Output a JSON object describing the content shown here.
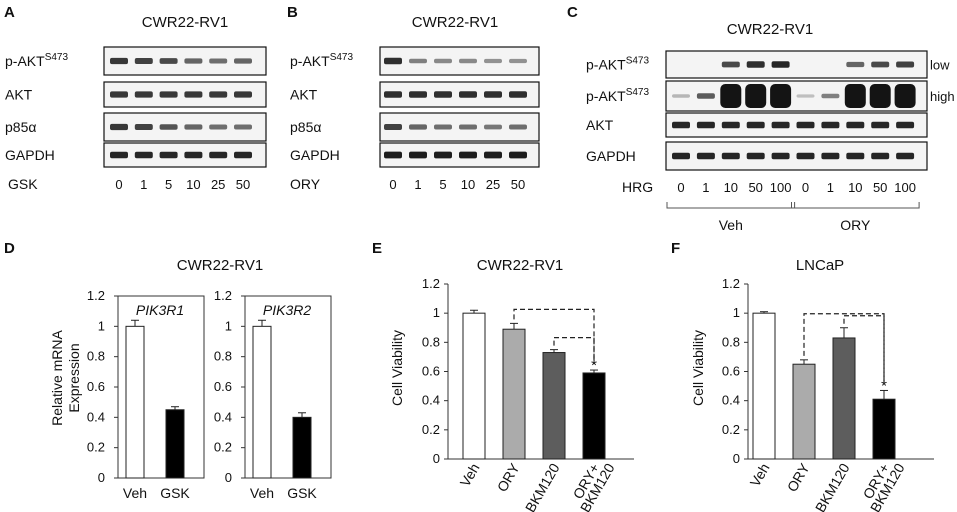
{
  "blots": [
    {
      "letter": "A",
      "cell_line": "CWR22-RV1",
      "rows": [
        {
          "label": "p-AKT",
          "sup": "S473",
          "side": ""
        },
        {
          "label": "AKT",
          "sup": "",
          "side": ""
        },
        {
          "label": "p85α",
          "sup": "",
          "side": ""
        },
        {
          "label": "GAPDH",
          "sup": "",
          "side": ""
        }
      ],
      "treatment": "GSK",
      "doses": [
        "0",
        "1",
        "5",
        "10",
        "25",
        "50"
      ],
      "intensity": [
        [
          0.8,
          0.75,
          0.7,
          0.55,
          0.5,
          0.55
        ],
        [
          0.8,
          0.8,
          0.8,
          0.8,
          0.8,
          0.8
        ],
        [
          0.8,
          0.75,
          0.65,
          0.55,
          0.5,
          0.5
        ],
        [
          0.9,
          0.9,
          0.9,
          0.9,
          0.9,
          0.9
        ]
      ]
    },
    {
      "letter": "B",
      "cell_line": "CWR22-RV1",
      "rows": [
        {
          "label": "p-AKT",
          "sup": "S473",
          "side": ""
        },
        {
          "label": "AKT",
          "sup": "",
          "side": ""
        },
        {
          "label": "p85α",
          "sup": "",
          "side": ""
        },
        {
          "label": "GAPDH",
          "sup": "",
          "side": ""
        }
      ],
      "treatment": "ORY",
      "doses": [
        "0",
        "1",
        "5",
        "10",
        "25",
        "50"
      ],
      "intensity": [
        [
          0.85,
          0.4,
          0.35,
          0.35,
          0.3,
          0.3
        ],
        [
          0.85,
          0.85,
          0.85,
          0.85,
          0.85,
          0.85
        ],
        [
          0.75,
          0.55,
          0.5,
          0.5,
          0.45,
          0.5
        ],
        [
          0.95,
          0.95,
          0.95,
          0.95,
          0.95,
          0.95
        ]
      ]
    },
    {
      "letter": "C",
      "cell_line": "CWR22-RV1",
      "rows": [
        {
          "label": "p-AKT",
          "sup": "S473",
          "side": "low"
        },
        {
          "label": "p-AKT",
          "sup": "S473",
          "side": "high"
        },
        {
          "label": "AKT",
          "sup": "",
          "side": ""
        },
        {
          "label": "GAPDH",
          "sup": "",
          "side": ""
        }
      ],
      "treatment": "HRG",
      "doses": [
        "0",
        "1",
        "10",
        "50",
        "100",
        "0",
        "1",
        "10",
        "50",
        "100"
      ],
      "groups": [
        {
          "name": "Veh",
          "from": 0,
          "to": 4
        },
        {
          "name": "ORY",
          "from": 5,
          "to": 9
        }
      ],
      "intensity": [
        [
          0,
          0,
          0.7,
          0.85,
          0.9,
          0,
          0,
          0.55,
          0.7,
          0.75
        ],
        [
          0.1,
          0.6,
          1,
          1,
          1,
          0.05,
          0.4,
          1,
          1,
          1
        ],
        [
          0.9,
          0.9,
          0.9,
          0.9,
          0.9,
          0.9,
          0.9,
          0.9,
          0.9,
          0.9
        ],
        [
          0.9,
          0.9,
          0.9,
          0.9,
          0.9,
          0.9,
          0.9,
          0.9,
          0.9,
          0.9
        ]
      ]
    }
  ],
  "bar_panels": [
    {
      "letter": "D",
      "title": "CWR22-RV1",
      "ylabel": [
        "Relative mRNA",
        "Expression"
      ]
    },
    {
      "letter": "E",
      "title": "CWR22-RV1",
      "ylabel": [
        "Cell Viability"
      ]
    },
    {
      "letter": "F",
      "title": "LNCaP",
      "ylabel": [
        "Cell Viability"
      ]
    }
  ],
  "chart_data": [
    {
      "type": "bar",
      "panel": "D",
      "title": "PIK3R1",
      "categories": [
        "Veh",
        "GSK"
      ],
      "values": [
        1.0,
        0.45
      ],
      "errors": [
        0.04,
        0.02
      ],
      "colors": [
        "#ffffff",
        "#000000"
      ],
      "ylim": [
        0,
        1.2
      ],
      "yticks": [
        "0",
        "0.2",
        "0.4",
        "0.6",
        "0.8",
        "1",
        "1.2"
      ],
      "significance": []
    },
    {
      "type": "bar",
      "panel": "D",
      "title": "PIK3R2",
      "categories": [
        "Veh",
        "GSK"
      ],
      "values": [
        1.0,
        0.4
      ],
      "errors": [
        0.04,
        0.03
      ],
      "colors": [
        "#ffffff",
        "#000000"
      ],
      "ylim": [
        0,
        1.2
      ],
      "yticks": [
        "0",
        "0.2",
        "0.4",
        "0.6",
        "0.8",
        "1",
        "1.2"
      ],
      "significance": []
    },
    {
      "type": "bar",
      "panel": "E",
      "title": "CWR22-RV1",
      "categories": [
        "Veh",
        "ORY",
        "BKM120",
        "ORY+ BKM120"
      ],
      "values": [
        1.0,
        0.89,
        0.73,
        0.59
      ],
      "errors": [
        0.02,
        0.04,
        0.02,
        0.02
      ],
      "colors": [
        "#ffffff",
        "#ababab",
        "#5d5d5d",
        "#000000"
      ],
      "ylim": [
        0,
        1.2
      ],
      "yticks": [
        "0",
        "0.2",
        "0.4",
        "0.6",
        "0.8",
        "1",
        "1.2"
      ],
      "significance": [
        {
          "from": 1,
          "to": 3,
          "label": "*"
        },
        {
          "from": 2,
          "to": 3,
          "label": ""
        }
      ]
    },
    {
      "type": "bar",
      "panel": "F",
      "title": "LNCaP",
      "categories": [
        "Veh",
        "ORY",
        "BKM120",
        "ORY+ BKM120"
      ],
      "values": [
        1.0,
        0.65,
        0.83,
        0.41
      ],
      "errors": [
        0.01,
        0.03,
        0.07,
        0.06
      ],
      "colors": [
        "#ffffff",
        "#ababab",
        "#5d5d5d",
        "#000000"
      ],
      "ylim": [
        0,
        1.2
      ],
      "yticks": [
        "0",
        "0.2",
        "0.4",
        "0.6",
        "0.8",
        "1",
        "1.2"
      ],
      "significance": [
        {
          "from": 1,
          "to": 3,
          "label": "*"
        },
        {
          "from": 2,
          "to": 3,
          "label": ""
        }
      ]
    }
  ]
}
